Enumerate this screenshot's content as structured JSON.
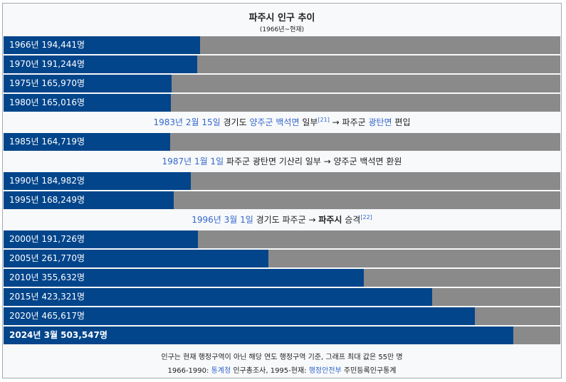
{
  "chart_data": {
    "type": "bar",
    "orientation": "horizontal",
    "title": "파주시 인구 추이",
    "subtitle": "(1966년~현재)",
    "xlim": [
      0,
      550000
    ],
    "bar_color": "#02458b",
    "track_color": "#8a8a8a",
    "rows": [
      {
        "label": "1966년 194,441명",
        "value": 194441
      },
      {
        "label": "1970년 191,244명",
        "value": 191244
      },
      {
        "label": "1975년 165,970명",
        "value": 165970
      },
      {
        "label": "1980년 165,016명",
        "value": 165016
      },
      {
        "label": "1985년 164,719명",
        "value": 164719
      },
      {
        "label": "1990년 184,982명",
        "value": 184982
      },
      {
        "label": "1995년 168,249명",
        "value": 168249
      },
      {
        "label": "2000년 191,726명",
        "value": 191726
      },
      {
        "label": "2005년 261,770명",
        "value": 261770
      },
      {
        "label": "2010년 355,632명",
        "value": 355632
      },
      {
        "label": "2015년 423,321명",
        "value": 423321
      },
      {
        "label": "2020년 465,617명",
        "value": 465617
      },
      {
        "label": "2024년 3월 503,547명",
        "value": 503547
      }
    ],
    "annotations": [
      {
        "date": "1983년 2월 15일",
        "t1": " 경기도 ",
        "l1": "양주군 백석면",
        "t2": " 일부",
        "ref": "[21]",
        "t3": " → 파주군 ",
        "l2": "광탄면",
        "t4": " 편입"
      },
      {
        "date": "1987년 1월 1일",
        "text": " 파주군 광탄면 기산리 일부 → 양주군 백석면 환원"
      },
      {
        "date": "1996년 3월 1일",
        "t1": " 경기도 파주군 → ",
        "bold": "파주시",
        "t2": " 승격",
        "ref": "[22]"
      }
    ],
    "footnote": {
      "line1": "인구는 현재 행정구역이 아닌 해당 연도 행정구역 기준, 그래프 최대 값은 55만 명",
      "line2_pre": "1966-1990: ",
      "line2_link1": "통계청",
      "line2_mid": " 인구총조사, 1995-현재: ",
      "line2_link2": "행정안전부",
      "line2_post": " 주민등록인구통계"
    }
  }
}
